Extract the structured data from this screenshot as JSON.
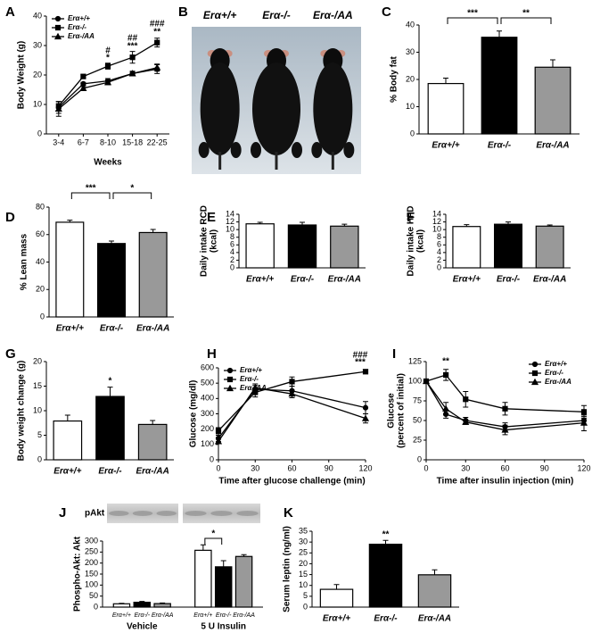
{
  "chart_data": [
    {
      "label": "A",
      "type": "line",
      "ylabel": "Body Weight (g)",
      "xlabel": "Weeks",
      "categories": [
        "3-4",
        "6-7",
        "8-10",
        "15-18",
        "22-25"
      ],
      "series": [
        {
          "name": "Erα+/+",
          "marker": "circle",
          "color": "#000000",
          "values": [
            9,
            17,
            18,
            20.5,
            22
          ],
          "errors": [
            2,
            0.5,
            0.8,
            0.8,
            1.5
          ]
        },
        {
          "name": "Erα-/-",
          "marker": "square",
          "color": "#000000",
          "values": [
            9.5,
            19.5,
            23,
            26,
            31
          ],
          "errors": [
            1.5,
            0.6,
            1,
            2,
            1.5
          ]
        },
        {
          "name": "Erα-/AA",
          "marker": "triangle",
          "color": "#000000",
          "values": [
            8.5,
            15.5,
            17.5,
            20.5,
            22.5
          ],
          "errors": [
            2.5,
            0.6,
            0.8,
            0.5,
            1.2
          ]
        }
      ],
      "ylim": [
        0,
        40
      ],
      "yticks": [
        0,
        10,
        20,
        30,
        40
      ],
      "legend": "upper left",
      "annotations": [
        "#",
        "*",
        "##",
        "***",
        "###",
        "**"
      ]
    },
    {
      "label": "B",
      "type": "image",
      "captions": [
        "Erα+/+",
        "Erα-/-",
        "Erα-/AA"
      ]
    },
    {
      "label": "C",
      "type": "bar",
      "ylabel": "% Body fat",
      "categories": [
        "Erα+/+",
        "Erα-/-",
        "Erα-/AA"
      ],
      "values": [
        18.5,
        35.5,
        24.5
      ],
      "errors": [
        2,
        2.3,
        2.7
      ],
      "colors": [
        "#ffffff",
        "#000000",
        "#999999"
      ],
      "ylim": [
        0,
        40
      ],
      "yticks": [
        0,
        10,
        20,
        30,
        40
      ],
      "annotations": [
        "***",
        "**"
      ]
    },
    {
      "label": "D",
      "type": "bar",
      "ylabel": "% Lean mass",
      "categories": [
        "Erα+/+",
        "Erα-/-",
        "Erα-/AA"
      ],
      "values": [
        69,
        53.5,
        61.5
      ],
      "errors": [
        1.5,
        1.8,
        2.2
      ],
      "colors": [
        "#ffffff",
        "#000000",
        "#999999"
      ],
      "ylim": [
        0,
        80
      ],
      "yticks": [
        0,
        20,
        40,
        60,
        80
      ],
      "annotations": [
        "***",
        "*"
      ]
    },
    {
      "label": "E",
      "type": "bar",
      "ylabel": [
        "Daily intake RCD",
        "(kcal)"
      ],
      "categories": [
        "Erα+/+",
        "Erα-/-",
        "Erα-/AA"
      ],
      "values": [
        11.5,
        11.2,
        10.9
      ],
      "errors": [
        0.4,
        0.7,
        0.5
      ],
      "colors": [
        "#ffffff",
        "#000000",
        "#999999"
      ],
      "ylim": [
        0,
        14
      ],
      "yticks": [
        0,
        2,
        4,
        6,
        8,
        10,
        12,
        14
      ]
    },
    {
      "label": "F",
      "type": "bar",
      "ylabel": [
        "Daily intake HFD",
        "(kcal)"
      ],
      "categories": [
        "Erα+/+",
        "Erα-/-",
        "Erα-/AA"
      ],
      "values": [
        10.8,
        11.4,
        10.9
      ],
      "errors": [
        0.5,
        0.6,
        0.3
      ],
      "colors": [
        "#ffffff",
        "#000000",
        "#999999"
      ],
      "ylim": [
        0,
        14
      ],
      "yticks": [
        0,
        2,
        4,
        6,
        8,
        10,
        12,
        14
      ]
    },
    {
      "label": "G",
      "type": "bar",
      "ylabel": "Body weight change (g)",
      "categories": [
        "Erα+/+",
        "Erα-/-",
        "Erα-/AA"
      ],
      "values": [
        7.9,
        12.9,
        7.2
      ],
      "errors": [
        1.2,
        1.9,
        0.8
      ],
      "colors": [
        "#ffffff",
        "#000000",
        "#999999"
      ],
      "ylim": [
        0,
        20
      ],
      "yticks": [
        0,
        5,
        10,
        15,
        20
      ],
      "annotations": [
        "*"
      ]
    },
    {
      "label": "H",
      "type": "line",
      "ylabel": "Glucose (mg/dl)",
      "xlabel": "Time after glucose challenge (min)",
      "x": [
        0,
        30,
        60,
        120
      ],
      "series": [
        {
          "name": "Erα+/+",
          "marker": "circle",
          "color": "#000000",
          "values": [
            140,
            460,
            450,
            340
          ],
          "errors": [
            20,
            25,
            30,
            40
          ]
        },
        {
          "name": "Erα-/-",
          "marker": "square",
          "color": "#000000",
          "values": [
            190,
            440,
            510,
            575
          ],
          "errors": [
            20,
            30,
            30,
            10
          ]
        },
        {
          "name": "Erα-/AA",
          "marker": "triangle",
          "color": "#000000",
          "values": [
            120,
            470,
            430,
            270
          ],
          "errors": [
            15,
            25,
            25,
            30
          ]
        }
      ],
      "xlim": [
        0,
        120
      ],
      "xticks": [
        0,
        30,
        60,
        90,
        120
      ],
      "ylim": [
        0,
        600
      ],
      "yticks": [
        0,
        100,
        200,
        300,
        400,
        500,
        600
      ],
      "legend": "upper left",
      "annotations": [
        "###",
        "***"
      ]
    },
    {
      "label": "I",
      "type": "line",
      "ylabel": [
        "Glucose",
        "(percent of initial)"
      ],
      "xlabel": "Time after insulin injection (min)",
      "x": [
        0,
        15,
        30,
        60,
        120
      ],
      "series": [
        {
          "name": "Erα+/+",
          "marker": "circle",
          "color": "#000000",
          "values": [
            100,
            58,
            50,
            42,
            50
          ],
          "errors": [
            0,
            5,
            4,
            5,
            5
          ]
        },
        {
          "name": "Erα-/-",
          "marker": "square",
          "color": "#000000",
          "values": [
            100,
            108,
            77,
            65,
            61
          ],
          "errors": [
            0,
            7,
            10,
            8,
            8
          ]
        },
        {
          "name": "Erα-/AA",
          "marker": "triangle",
          "color": "#000000",
          "values": [
            100,
            65,
            48,
            38,
            47
          ],
          "errors": [
            0,
            8,
            3,
            6,
            10
          ]
        }
      ],
      "xlim": [
        0,
        120
      ],
      "xticks": [
        0,
        30,
        60,
        90,
        120
      ],
      "ylim": [
        0,
        125
      ],
      "yticks": [
        0,
        25,
        50,
        75,
        100,
        125
      ],
      "legend": "upper right",
      "annotations": [
        "**"
      ]
    },
    {
      "label": "J",
      "type": "bar",
      "ylabel": "Phospho-Akt: Akt",
      "blot_label": "pAkt",
      "categories": [
        "Erα+/+",
        "Erα-/-",
        "Erα-/AA",
        "Erα+/+",
        "Erα-/-",
        "Erα-/AA"
      ],
      "groups": [
        "Vehicle",
        "5 U Insulin"
      ],
      "values": [
        15,
        22,
        16,
        258,
        183,
        230
      ],
      "errors": [
        2,
        4,
        3,
        25,
        28,
        8
      ],
      "colors": [
        "#ffffff",
        "#000000",
        "#999999",
        "#ffffff",
        "#000000",
        "#999999"
      ],
      "ylim": [
        0,
        300
      ],
      "yticks": [
        0,
        50,
        100,
        150,
        200,
        250,
        300
      ],
      "annotations": [
        "*"
      ]
    },
    {
      "label": "K",
      "type": "bar",
      "ylabel": "Serum leptin (ng/ml)",
      "categories": [
        "Erα+/+",
        "Erα-/-",
        "Erα-/AA"
      ],
      "values": [
        8.2,
        29,
        14.9
      ],
      "errors": [
        2.2,
        1.8,
        2.3
      ],
      "colors": [
        "#ffffff",
        "#000000",
        "#999999"
      ],
      "ylim": [
        0,
        35
      ],
      "yticks": [
        0,
        5,
        10,
        15,
        20,
        25,
        30,
        35
      ],
      "annotations": [
        "**"
      ]
    }
  ]
}
